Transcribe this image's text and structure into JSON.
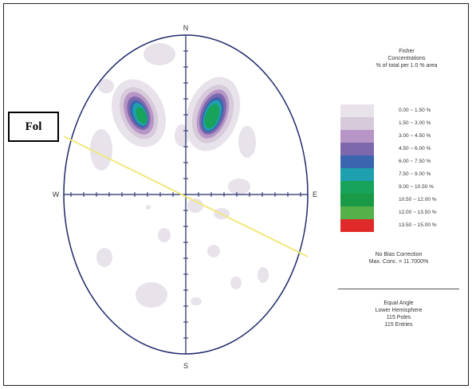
{
  "labels": {
    "north": "N",
    "south": "S",
    "west": "W",
    "east": "E",
    "foliation": "Fol"
  },
  "legend": {
    "title_lines": [
      "Fisher",
      "Concentrations",
      "% of total per 1.0 % area"
    ],
    "classes": [
      {
        "range": "0.00 ~ 1.50 %",
        "color": "#e8e2ea"
      },
      {
        "range": "1.50 ~ 3.00 %",
        "color": "#d6cadb"
      },
      {
        "range": "3.00 ~ 4.50 %",
        "color": "#b795c6"
      },
      {
        "range": "4.50 ~ 6.00 %",
        "color": "#7d67ad"
      },
      {
        "range": "6.00 ~ 7.50 %",
        "color": "#3a66b0"
      },
      {
        "range": "7.50 ~ 9.00 %",
        "color": "#1fa0ae"
      },
      {
        "range": "9.00 ~ 10.50 %",
        "color": "#17a35a"
      },
      {
        "range": "10.50 ~ 12.00 %",
        "color": "#1a9a46"
      },
      {
        "range": "12.00 ~ 13.50 %",
        "color": "#55b04a"
      },
      {
        "range": "13.50 ~ 15.00 %",
        "color": "#e02a2a"
      }
    ],
    "bias_note": "No Bias Correction",
    "max_conc": "Max. Conc. = 11.7000%",
    "projection_lines": [
      "Equal Angle",
      "Lower Hemisphere",
      "115 Poles",
      "115 Entries"
    ]
  },
  "colors": {
    "net_outline": "#1f2a6b",
    "foliation_line": "#f0e87a"
  }
}
